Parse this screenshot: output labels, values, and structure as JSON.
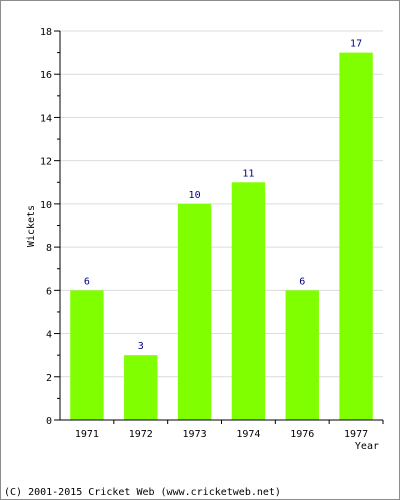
{
  "footer": "(C) 2001-2015 Cricket Web (www.cricketweb.net)",
  "colors": {
    "bar": "#80ff00",
    "value_label": "#000080",
    "grid": "#dcdcdc",
    "axis": "#000000"
  },
  "chart_data": {
    "type": "bar",
    "title": "",
    "xlabel": "Year",
    "ylabel": "Wickets",
    "categories": [
      "1971",
      "1972",
      "1973",
      "1974",
      "1976",
      "1977"
    ],
    "values": [
      6,
      3,
      10,
      11,
      6,
      17
    ],
    "ylim": [
      0,
      18
    ],
    "yticks": [
      0,
      2,
      4,
      6,
      8,
      10,
      12,
      14,
      16,
      18
    ],
    "grid": true,
    "legend": "none"
  }
}
